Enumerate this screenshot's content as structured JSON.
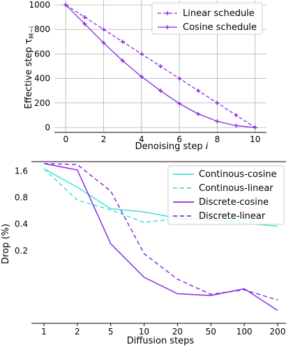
{
  "chart_data": [
    {
      "type": "line",
      "xlabel": "Denoising step i",
      "xlabel_main": "Denoising step ",
      "xlabel_var": "i",
      "ylabel": "Effective step τ_{M−i}",
      "ylabel_main": "Effective step τ",
      "ylabel_sub": "M−i",
      "xlim": [
        -0.6,
        10.6
      ],
      "ylim": [
        -40,
        1040
      ],
      "x": [
        0,
        1,
        2,
        3,
        4,
        5,
        6,
        7,
        8,
        9,
        10
      ],
      "xticks": [
        "0",
        "2",
        "4",
        "6",
        "8",
        "10"
      ],
      "xtick_values": [
        0,
        2,
        4,
        6,
        8,
        10
      ],
      "yticks": [
        "0",
        "200",
        "400",
        "600",
        "800",
        "1000"
      ],
      "ytick_values": [
        0,
        200,
        400,
        600,
        800,
        1000
      ],
      "grid": true,
      "legend_position": "top-right",
      "series": [
        {
          "name": "Linear schedule",
          "style": "dashed",
          "marker": "plus",
          "color": "#8a2be2",
          "values": [
            1000,
            900,
            800,
            700,
            600,
            500,
            400,
            300,
            200,
            100,
            0
          ]
        },
        {
          "name": "Cosine schedule",
          "style": "solid",
          "marker": "plus",
          "color": "#8a2be2",
          "values": [
            1000,
            845,
            690,
            545,
            415,
            300,
            195,
            110,
            50,
            15,
            0
          ]
        }
      ]
    },
    {
      "type": "line",
      "xlabel": "Diffusion steps",
      "ylabel": "Drop (%)",
      "yscale": "log",
      "ylim": [
        0.03,
        2.05
      ],
      "categories": [
        "1",
        "2",
        "5",
        "10",
        "20",
        "50",
        "100",
        "200"
      ],
      "yticks": [
        "1.6",
        "0.8",
        "0.4",
        "0.2"
      ],
      "ytick_values": [
        1.6,
        0.8,
        0.4,
        0.2
      ],
      "grid": false,
      "legend_position": "top-right",
      "series": [
        {
          "name": "Continous-cosine",
          "style": "solid",
          "color": "#40e0d0",
          "values": [
            1.7,
            1.05,
            0.6,
            0.55,
            0.47,
            0.45,
            0.41,
            0.38
          ]
        },
        {
          "name": "Continous-linear",
          "style": "dashed",
          "color": "#40e0d0",
          "values": [
            1.7,
            0.75,
            0.58,
            0.42,
            0.46,
            0.45,
            0.44,
            0.4
          ]
        },
        {
          "name": "Discrete-cosine",
          "style": "solid",
          "color": "#8a2be2",
          "values": [
            1.95,
            1.65,
            0.24,
            0.1,
            0.065,
            0.062,
            0.074,
            0.042
          ]
        },
        {
          "name": "Discrete-linear",
          "style": "dashed",
          "color": "#8a2be2",
          "values": [
            1.95,
            1.9,
            0.95,
            0.185,
            0.095,
            0.064,
            0.072,
            0.055
          ]
        }
      ]
    }
  ]
}
